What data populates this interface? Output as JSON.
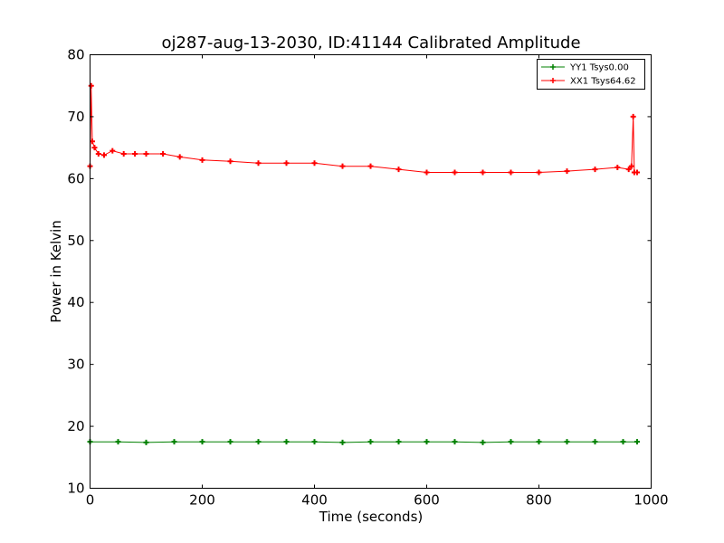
{
  "chart_data": {
    "type": "line",
    "title": "oj287-aug-13-2030, ID:41144 Calibrated Amplitude",
    "xlabel": "Time (seconds)",
    "ylabel": "Power in Kelvin",
    "xlim": [
      0,
      1000
    ],
    "ylim": [
      10,
      80
    ],
    "xticks": [
      0,
      200,
      400,
      600,
      800,
      1000
    ],
    "yticks": [
      10,
      20,
      30,
      40,
      50,
      60,
      70,
      80
    ],
    "grid": false,
    "legend_position": "top-right",
    "marker": "plus",
    "series": [
      {
        "name": "YY1 Tsys0.00",
        "color": "#008000",
        "x": [
          0,
          50,
          100,
          150,
          200,
          250,
          300,
          350,
          400,
          450,
          500,
          550,
          600,
          650,
          700,
          750,
          800,
          850,
          900,
          950,
          975
        ],
        "y": [
          17.5,
          17.5,
          17.4,
          17.5,
          17.5,
          17.5,
          17.5,
          17.5,
          17.5,
          17.4,
          17.5,
          17.5,
          17.5,
          17.5,
          17.4,
          17.5,
          17.5,
          17.5,
          17.5,
          17.5,
          17.5
        ]
      },
      {
        "name": "XX1 Tsys64.62",
        "color": "#ff0000",
        "x": [
          0,
          2,
          4,
          8,
          15,
          25,
          40,
          60,
          80,
          100,
          130,
          160,
          200,
          250,
          300,
          350,
          400,
          450,
          500,
          550,
          600,
          650,
          700,
          750,
          800,
          850,
          900,
          940,
          960,
          965,
          968,
          970,
          975
        ],
        "y": [
          62.0,
          75.0,
          66.0,
          65.0,
          64.0,
          63.8,
          64.5,
          64.0,
          64.0,
          64.0,
          64.0,
          63.5,
          63.0,
          62.8,
          62.5,
          62.5,
          62.5,
          62.0,
          62.0,
          61.5,
          61.0,
          61.0,
          61.0,
          61.0,
          61.0,
          61.2,
          61.5,
          61.8,
          61.5,
          62.0,
          70.0,
          61.0,
          61.0
        ]
      }
    ]
  }
}
